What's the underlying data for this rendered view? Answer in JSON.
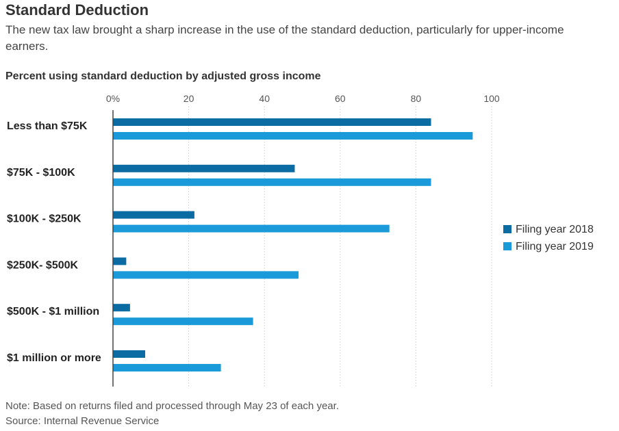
{
  "title": "Standard Deduction",
  "subtitle": "The new tax law brought a sharp increase in the use of the standard deduction, particularly for upper-income earners.",
  "chart_heading": "Percent using standard deduction by adjusted gross income",
  "note": "Note: Based on returns filed and processed through May 23 of each year.",
  "source": "Source: Internal Revenue Service",
  "colors": {
    "series_2018": "#0a6ca3",
    "series_2019": "#1a9ad9"
  },
  "chart_data": {
    "type": "bar",
    "orientation": "horizontal",
    "title": "Percent using standard deduction by adjusted gross income",
    "categories": [
      "Less than $75K",
      "$75K - $100K",
      "$100K - $250K",
      "$250K- $500K",
      "$500K - $1 million",
      "$1 million or more"
    ],
    "series": [
      {
        "name": "Filing year 2018",
        "color": "#0a6ca3",
        "values": [
          84,
          48,
          21.5,
          3.5,
          4.5,
          8.5
        ]
      },
      {
        "name": "Filing year 2019",
        "color": "#1a9ad9",
        "values": [
          95,
          84,
          73,
          49,
          37,
          28.5
        ]
      }
    ],
    "xlim": [
      0,
      100
    ],
    "ticks": [
      0,
      20,
      40,
      60,
      80,
      100
    ],
    "tick_labels": [
      "0%",
      "20",
      "40",
      "60",
      "80",
      "100"
    ],
    "grid": true,
    "legend_position": "right"
  }
}
